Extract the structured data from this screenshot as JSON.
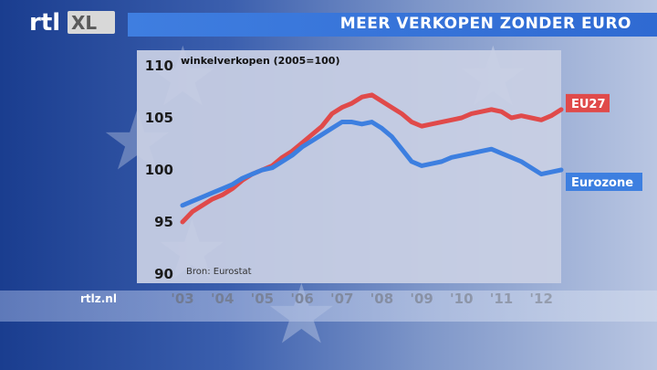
{
  "header": {
    "logo_text": "rtlXL",
    "title": "MEER VERKOPEN ZONDER EURO"
  },
  "footer": {
    "site": "rtlz.nl"
  },
  "colors": {
    "eu27": "#e04a4a",
    "eurozone": "#3d7fe0",
    "title_bar": "#3a78db"
  },
  "chart_data": {
    "type": "line",
    "title": "",
    "ylabel": "winkelverkopen (2005=100)",
    "source": "Bron: Eurostat",
    "x_tick_labels": [
      "'03",
      "'04",
      "'05",
      "'06",
      "'07",
      "'08",
      "'09",
      "'10",
      "'11",
      "'12"
    ],
    "x_ticks": [
      2003,
      2004,
      2005,
      2006,
      2007,
      2008,
      2009,
      2010,
      2011,
      2012
    ],
    "xlim": [
      2003,
      2012.5
    ],
    "yticks": [
      90,
      95,
      100,
      105,
      110
    ],
    "ylim": [
      90,
      110
    ],
    "grid": false,
    "legend_placement": "right, at line ends",
    "x": [
      2003.0,
      2003.25,
      2003.5,
      2003.75,
      2004.0,
      2004.25,
      2004.5,
      2004.75,
      2005.0,
      2005.25,
      2005.5,
      2005.75,
      2006.0,
      2006.25,
      2006.5,
      2006.75,
      2007.0,
      2007.25,
      2007.5,
      2007.75,
      2008.0,
      2008.25,
      2008.5,
      2008.75,
      2009.0,
      2009.25,
      2009.5,
      2009.75,
      2010.0,
      2010.25,
      2010.5,
      2010.75,
      2011.0,
      2011.25,
      2011.5,
      2011.75,
      2012.0,
      2012.25,
      2012.5
    ],
    "series": [
      {
        "name": "EU27",
        "color": "#e04a4a",
        "values": [
          95.0,
          96.0,
          96.6,
          97.2,
          97.6,
          98.2,
          99.0,
          99.6,
          100.0,
          100.4,
          101.2,
          101.8,
          102.6,
          103.4,
          104.2,
          105.4,
          106.0,
          106.4,
          107.0,
          107.2,
          106.6,
          106.0,
          105.4,
          104.6,
          104.2,
          104.4,
          104.6,
          104.8,
          105.0,
          105.4,
          105.6,
          105.8,
          105.6,
          105.0,
          105.2,
          105.0,
          104.8,
          105.2,
          105.8
        ]
      },
      {
        "name": "Eurozone",
        "color": "#3d7fe0",
        "values": [
          96.6,
          97.0,
          97.4,
          97.8,
          98.2,
          98.6,
          99.2,
          99.6,
          100.0,
          100.2,
          100.8,
          101.4,
          102.2,
          102.8,
          103.4,
          104.0,
          104.6,
          104.6,
          104.4,
          104.6,
          104.0,
          103.2,
          102.0,
          100.8,
          100.4,
          100.6,
          100.8,
          101.2,
          101.4,
          101.6,
          101.8,
          102.0,
          101.6,
          101.2,
          100.8,
          100.2,
          99.6,
          99.8,
          100.0
        ]
      }
    ]
  }
}
